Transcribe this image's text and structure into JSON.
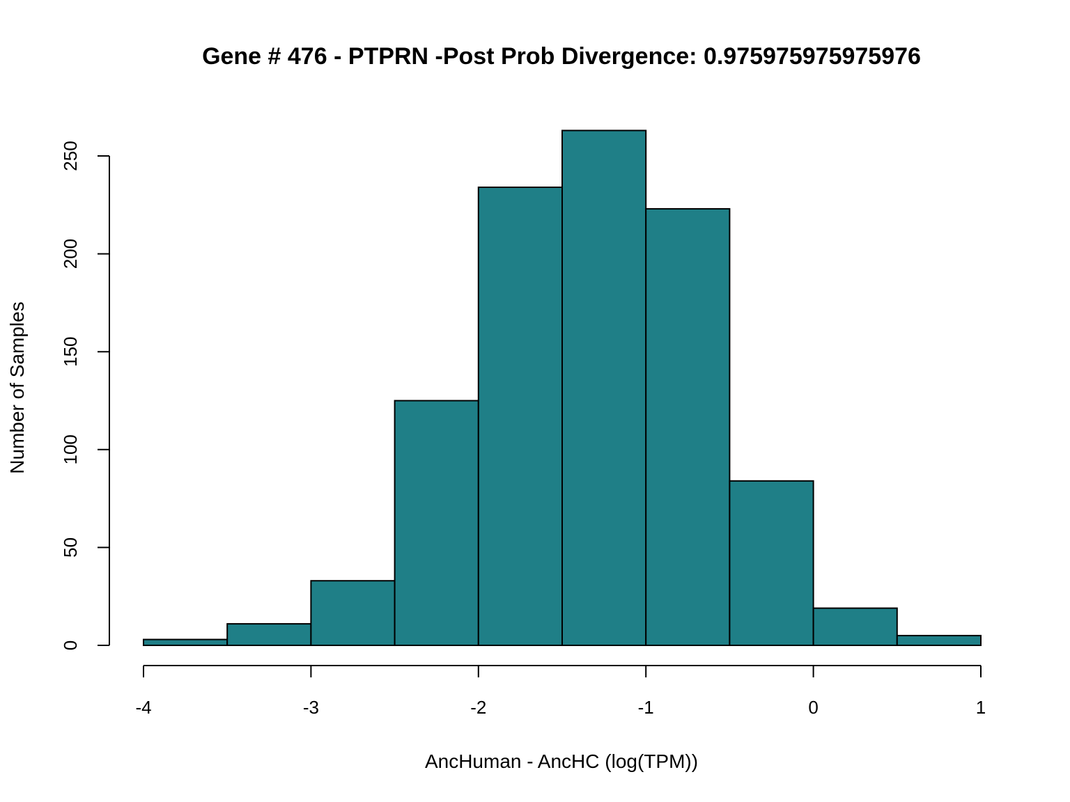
{
  "chart_data": {
    "type": "bar",
    "title": "Gene # 476 - PTPRN -Post Prob Divergence: 0.975975975975976",
    "xlabel": "AncHuman - AncHC (log(TPM))",
    "ylabel": "Number of Samples",
    "bin_edges": [
      -4,
      -3.5,
      -3,
      -2.5,
      -2,
      -1.5,
      -1,
      -0.5,
      0,
      0.5,
      1
    ],
    "values": [
      3,
      11,
      33,
      125,
      234,
      263,
      223,
      84,
      19,
      5
    ],
    "xlim": [
      -4,
      1
    ],
    "ylim": [
      0,
      250
    ],
    "xticks": [
      -4,
      -3,
      -2,
      -1,
      0,
      1
    ],
    "yticks": [
      0,
      50,
      100,
      150,
      200,
      250
    ],
    "bar_color": "#1f7f87",
    "grid": false,
    "legend": "none"
  }
}
